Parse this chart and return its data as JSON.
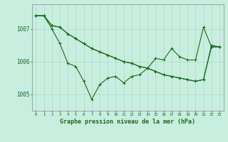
{
  "line1": [
    1007.4,
    1007.4,
    1007.1,
    1007.05,
    1006.85,
    1006.7,
    1006.55,
    1006.4,
    1006.3,
    1006.2,
    1006.1,
    1006.0,
    1005.95,
    1005.85,
    1005.8,
    1005.7,
    1005.6,
    1005.55,
    1005.5,
    1005.45,
    1005.4,
    1005.45,
    1006.5,
    1006.45
  ],
  "line2": [
    1007.4,
    1007.4,
    1007.1,
    1007.05,
    1006.85,
    1006.7,
    1006.55,
    1006.4,
    1006.3,
    1006.2,
    1006.1,
    1006.0,
    1005.95,
    1005.85,
    1005.8,
    1005.7,
    1005.6,
    1005.55,
    1005.5,
    1005.45,
    1005.4,
    1005.45,
    1006.45,
    1006.45
  ],
  "line3": [
    1007.4,
    1007.4,
    1007.0,
    1006.55,
    1005.95,
    1005.85,
    1005.4,
    1004.85,
    1005.3,
    1005.5,
    1005.55,
    1005.35,
    1005.55,
    1005.6,
    1005.8,
    1006.1,
    1006.05,
    1006.4,
    1006.15,
    1006.05,
    1006.05,
    1007.05,
    1006.45,
    1006.45
  ],
  "hours": [
    0,
    1,
    2,
    3,
    4,
    5,
    6,
    7,
    8,
    9,
    10,
    11,
    12,
    13,
    14,
    15,
    16,
    17,
    18,
    19,
    20,
    21,
    22,
    23
  ],
  "yticks": [
    1005,
    1006,
    1007
  ],
  "ylim": [
    1004.5,
    1007.75
  ],
  "xlim": [
    -0.5,
    23.5
  ],
  "bg_color": "#c8eee0",
  "line_color": "#1a6b1a",
  "grid_color": "#b0d8c8",
  "xlabel": "Graphe pression niveau de la mer (hPa)",
  "xlabel_color": "#1a6b1a",
  "marker": "+",
  "marker_size": 3.0,
  "linewidth": 0.8,
  "title_area_color": "#a8d8c0"
}
